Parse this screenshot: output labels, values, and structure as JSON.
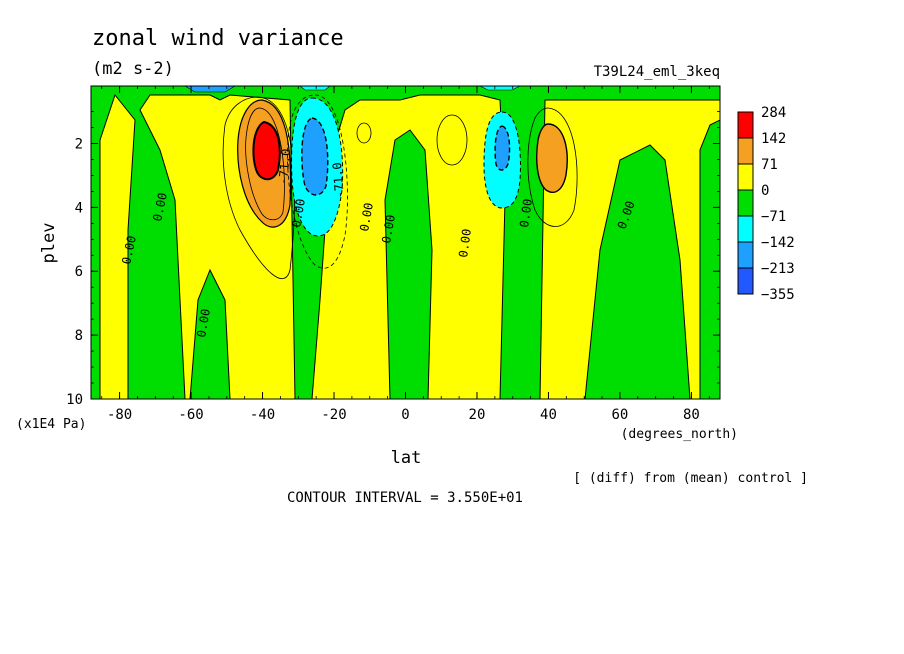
{
  "chart_data": {
    "type": "heatmap",
    "title": "zonal wind variance",
    "subtitle": "(m2 s-2)",
    "dataset_label": "T39L24_eml_3keq",
    "xlabel": "lat",
    "x_units": "(degrees_north)",
    "ylabel": "plev",
    "y_units": "(x1E4 Pa)",
    "xlim": [
      -88,
      88
    ],
    "ylim": [
      10,
      0.2
    ],
    "x_ticks": [
      "-80",
      "-60",
      "-40",
      "-20",
      "0",
      "20",
      "40",
      "60",
      "80"
    ],
    "y_ticks": [
      "2",
      "4",
      "6",
      "8",
      "10"
    ],
    "note": "[ (diff) from (mean) control ]",
    "contour_interval": "CONTOUR INTERVAL = 3.550E+01",
    "contour_labels": [
      "0.00",
      "-71.0",
      "-71.0"
    ],
    "legend": {
      "levels": [
        "284",
        "142",
        "71",
        "0",
        "−71",
        "−142",
        "−213",
        "−355"
      ],
      "colors": [
        "#ff0000",
        "#f5a021",
        "#ffff00",
        "#00dd00",
        "#00ffff",
        "#1ea0ff",
        "#2258ff"
      ]
    },
    "features": [
      {
        "lat": -38,
        "plev": 2.2,
        "value": 284
      },
      {
        "lat": -26,
        "plev": 2.4,
        "value": -213
      },
      {
        "lat": 28,
        "plev": 2.6,
        "value": -142
      },
      {
        "lat": 40,
        "plev": 2.5,
        "value": 142
      }
    ]
  }
}
